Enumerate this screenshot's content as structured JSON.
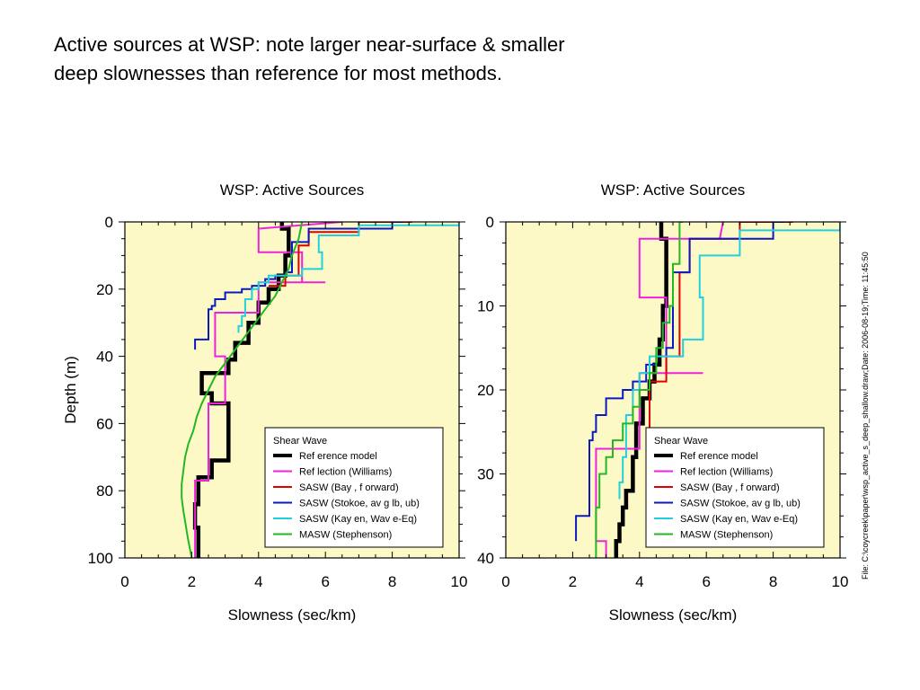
{
  "slide": {
    "title_line1": "Active sources at WSP:  note larger near-surface & smaller",
    "title_line2": "deep slownesses than reference for most methods.",
    "file_label": "File: C:\\coycreek\\paper\\wsp_active_s_deep_shallow.draw;Date: 2006-08-19;Time: 11:45:50"
  },
  "colors": {
    "plot_bg": "#fdf9c6",
    "reference": "#000000",
    "reflection": "#ee22dd",
    "sasw_bay": "#e00000",
    "sasw_stokoe": "#0a1ac0",
    "sasw_kayen": "#22d0dd",
    "masw": "#22b822"
  },
  "legend": {
    "title": "Shear   Wave",
    "items": [
      {
        "key": "reference",
        "label": "Ref erence    model"
      },
      {
        "key": "reflection",
        "label": "Ref lection    (Williams)"
      },
      {
        "key": "sasw_bay",
        "label": "SASW    (Bay ,   f orward)"
      },
      {
        "key": "sasw_stokoe",
        "label": "SASW    (Stokoe,     av g  lb,  ub)"
      },
      {
        "key": "sasw_kayen",
        "label": "SASW    (Kay en,     Wav e-Eq)"
      },
      {
        "key": "masw",
        "label": "MASW    (Stephenson)"
      }
    ]
  },
  "chart_data": [
    {
      "type": "line",
      "title": "WSP: Active Sources",
      "xlabel": "Slowness  (sec/km)",
      "ylabel": "Depth (m)",
      "xlim": [
        0,
        10
      ],
      "ylim": [
        0,
        100
      ],
      "y_inverted": true,
      "xticks": [
        0,
        2,
        4,
        6,
        8,
        10
      ],
      "yticks": [
        0,
        20,
        40,
        60,
        80,
        100
      ],
      "legend_position": "bottom-right",
      "series": [
        {
          "key": "reference",
          "name": "Ref erence    model",
          "x": [
            4.7,
            4.7,
            4.9,
            4.9,
            4.8,
            4.8,
            4.6,
            4.6,
            4.3,
            4.3,
            4.0,
            4.0,
            3.7,
            3.7,
            3.3,
            3.3,
            3.1,
            3.1,
            2.3,
            2.3,
            2.6,
            2.6,
            3.1,
            3.1,
            3.1,
            3.1,
            2.6,
            2.6,
            2.2,
            2.2,
            2.1,
            2.1,
            2.2,
            2.2
          ],
          "y": [
            0,
            2,
            2,
            10,
            10,
            16,
            16,
            20,
            20,
            24,
            24,
            30,
            30,
            36,
            36,
            41,
            41,
            45,
            45,
            51,
            51,
            54,
            54,
            61,
            61,
            71,
            71,
            76,
            76,
            84,
            84,
            91,
            91,
            100
          ]
        },
        {
          "key": "reflection",
          "name": "Ref lection    (Williams)",
          "x": [
            6.5,
            4.0,
            4.0,
            5.3,
            5.3,
            6.0,
            6.0,
            4.0,
            4.0,
            2.7,
            2.7,
            3.0,
            3.0,
            2.5,
            2.5,
            2.1,
            2.1
          ],
          "y": [
            0,
            2,
            9,
            9,
            18,
            18,
            18,
            18,
            27,
            27,
            40,
            40,
            54,
            54,
            77,
            77,
            100
          ]
        },
        {
          "key": "sasw_bay",
          "name": "SASW    (Bay ,   f orward)",
          "x": [
            8.6,
            7.0,
            7.0,
            5.5,
            5.5,
            5.2,
            5.2,
            4.8,
            4.8,
            4.3
          ],
          "y": [
            0,
            0,
            3,
            3,
            7,
            7,
            16,
            16,
            19,
            19
          ]
        },
        {
          "key": "sasw_stokoe",
          "name": "SASW    (Stokoe,     av g  lb,  ub)",
          "x": [
            8.3,
            8.0,
            8.0,
            5.5,
            5.5,
            5.0,
            5.0,
            4.8,
            4.8,
            4.5,
            4.5,
            4.2,
            4.2,
            3.8,
            3.8,
            3.5,
            3.5,
            3.0,
            3.0,
            2.7,
            2.7,
            2.6,
            2.6,
            2.5,
            2.5,
            2.2,
            2.2,
            2.1,
            2.1
          ],
          "y": [
            0,
            0,
            2,
            2,
            6,
            6,
            15,
            15,
            16,
            16,
            17,
            17,
            19,
            19,
            20,
            20,
            21,
            21,
            23,
            23,
            25,
            25,
            26,
            26,
            35,
            35,
            35,
            35,
            38
          ]
        },
        {
          "key": "sasw_kayen",
          "name": "SASW    (Kay en,     Wav e-Eq)",
          "x": [
            10,
            10,
            7.0,
            7.0,
            5.8,
            5.8,
            5.9,
            5.9,
            5.3,
            5.3,
            4.3,
            4.3,
            4.0,
            4.0,
            3.8,
            3.8,
            3.6,
            3.6,
            3.5,
            3.5,
            3.4,
            3.4
          ],
          "y": [
            0,
            1,
            1,
            4,
            4,
            9,
            9,
            14,
            14,
            16,
            16,
            18,
            18,
            20,
            20,
            23,
            23,
            28,
            28,
            31,
            31,
            33
          ]
        },
        {
          "key": "masw",
          "name": "MASW    (Stephenson)",
          "x": [
            5.3,
            5.2,
            5.0,
            4.9,
            4.7,
            4.5,
            4.2,
            3.9,
            3.6,
            3.3,
            3.0,
            2.7,
            2.5,
            2.3,
            2.15,
            2.05,
            1.9,
            1.8,
            1.75,
            1.7,
            1.7,
            1.75,
            1.8,
            1.85,
            1.9,
            2.0
          ],
          "y": [
            0,
            5,
            10,
            14,
            18,
            22,
            26,
            30,
            34,
            38,
            42,
            46,
            50,
            54,
            58,
            62,
            66,
            70,
            74,
            78,
            82,
            86,
            89,
            92,
            95,
            100
          ]
        }
      ]
    },
    {
      "type": "line",
      "title": "WSP: Active Sources",
      "xlabel": "Slowness  (sec/km)",
      "ylabel": "",
      "xlim": [
        0,
        10
      ],
      "ylim": [
        0,
        40
      ],
      "y_inverted": true,
      "xticks": [
        0,
        2,
        4,
        6,
        8,
        10
      ],
      "yticks": [
        0,
        10,
        20,
        30,
        40
      ],
      "legend_position": "bottom-right",
      "series": [
        {
          "key": "reference",
          "name": "Ref erence    model",
          "x": [
            4.65,
            4.65,
            4.8,
            4.8,
            4.7,
            4.7,
            4.6,
            4.6,
            4.45,
            4.45,
            4.3,
            4.3,
            4.1,
            4.1,
            3.9,
            3.9,
            3.8,
            3.8,
            3.6,
            3.6,
            3.5,
            3.5,
            3.4,
            3.4,
            3.3,
            3.3
          ],
          "y": [
            0,
            2,
            2,
            10,
            10,
            14,
            14,
            17,
            17,
            19,
            19,
            21,
            21,
            24,
            24,
            28,
            28,
            32,
            32,
            34,
            34,
            36,
            36,
            38,
            38,
            40
          ]
        },
        {
          "key": "reflection",
          "name": "Ref lection    (Williams)",
          "x": [
            6.5,
            6.4,
            4.0,
            4.0,
            4.8,
            4.8,
            5.9,
            5.9,
            4.0,
            4.0,
            2.7,
            2.7,
            3.0,
            3.0
          ],
          "y": [
            0,
            2,
            2,
            9,
            9,
            18,
            18,
            18,
            18,
            27,
            27,
            38,
            38,
            40
          ]
        },
        {
          "key": "sasw_bay",
          "name": "SASW    (Bay ,   f orward)",
          "x": [
            8.6,
            7.0,
            7.0,
            5.5,
            5.5,
            5.2,
            5.2,
            4.8,
            4.8,
            4.3,
            4.3
          ],
          "y": [
            0,
            0,
            2,
            2,
            6,
            6,
            16,
            16,
            19,
            19,
            27
          ]
        },
        {
          "key": "sasw_stokoe",
          "name": "SASW    (Stokoe,     av g  lb,  ub)",
          "x": [
            8.3,
            8.0,
            8.0,
            5.5,
            5.5,
            5.0,
            5.0,
            4.8,
            4.8,
            4.5,
            4.5,
            4.2,
            4.2,
            3.8,
            3.8,
            3.5,
            3.5,
            3.0,
            3.0,
            2.7,
            2.7,
            2.6,
            2.6,
            2.5,
            2.5,
            2.2,
            2.2,
            2.1,
            2.1
          ],
          "y": [
            0,
            0,
            2,
            2,
            6,
            6,
            15,
            15,
            16,
            16,
            17,
            17,
            19,
            19,
            20,
            20,
            21,
            21,
            23,
            23,
            25,
            25,
            26,
            26,
            35,
            35,
            35,
            35,
            38
          ]
        },
        {
          "key": "sasw_kayen",
          "name": "SASW    (Kay en,     Wav e-Eq)",
          "x": [
            10,
            10,
            7.0,
            7.0,
            5.8,
            5.8,
            5.9,
            5.9,
            5.3,
            5.3,
            4.3,
            4.3,
            4.0,
            4.0,
            3.8,
            3.8,
            3.6,
            3.6,
            3.5,
            3.5,
            3.4,
            3.4
          ],
          "y": [
            0,
            1,
            1,
            4,
            4,
            9,
            9,
            14,
            14,
            16,
            16,
            18,
            18,
            20,
            20,
            23,
            23,
            28,
            28,
            31,
            31,
            33
          ]
        },
        {
          "key": "masw",
          "name": "MASW    (Stephenson)",
          "x": [
            5.3,
            5.2,
            5.2,
            5.0,
            5.0,
            4.9,
            4.9,
            4.7,
            4.7,
            4.5,
            4.5,
            4.3,
            4.3,
            4.0,
            4.0,
            3.8,
            3.8,
            3.5,
            3.5,
            3.2,
            3.2,
            3.0,
            3.0,
            2.8,
            2.8,
            2.7,
            2.7
          ],
          "y": [
            0,
            0,
            5,
            5,
            10,
            10,
            12,
            12,
            15,
            15,
            18,
            18,
            20,
            20,
            22,
            22,
            24,
            24,
            26,
            26,
            28,
            28,
            30,
            30,
            34,
            34,
            40
          ]
        }
      ]
    }
  ]
}
